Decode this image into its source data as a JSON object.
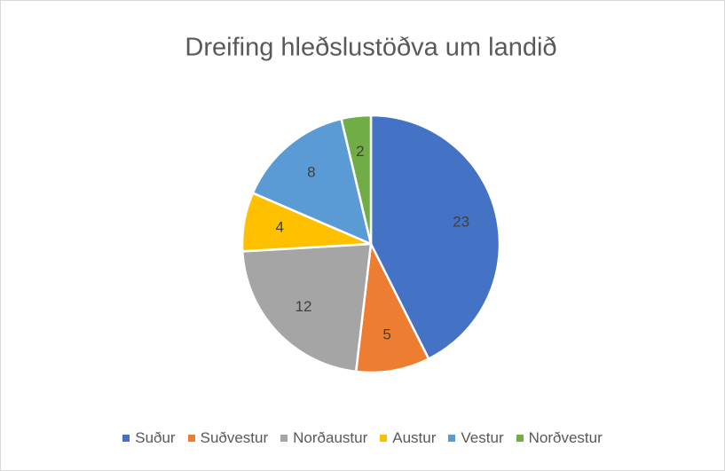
{
  "chart_data": {
    "type": "pie",
    "title": "Dreifing hleðslustöðva um landið",
    "categories": [
      "Suður",
      "Suðvestur",
      "Norðaustur",
      "Austur",
      "Vestur",
      "Norðvestur"
    ],
    "values": [
      23,
      5,
      12,
      4,
      8,
      2
    ],
    "colors": [
      "#4472c4",
      "#ed7d31",
      "#a5a5a5",
      "#ffc000",
      "#5b9bd5",
      "#70ad47"
    ],
    "legend": "bottom"
  }
}
